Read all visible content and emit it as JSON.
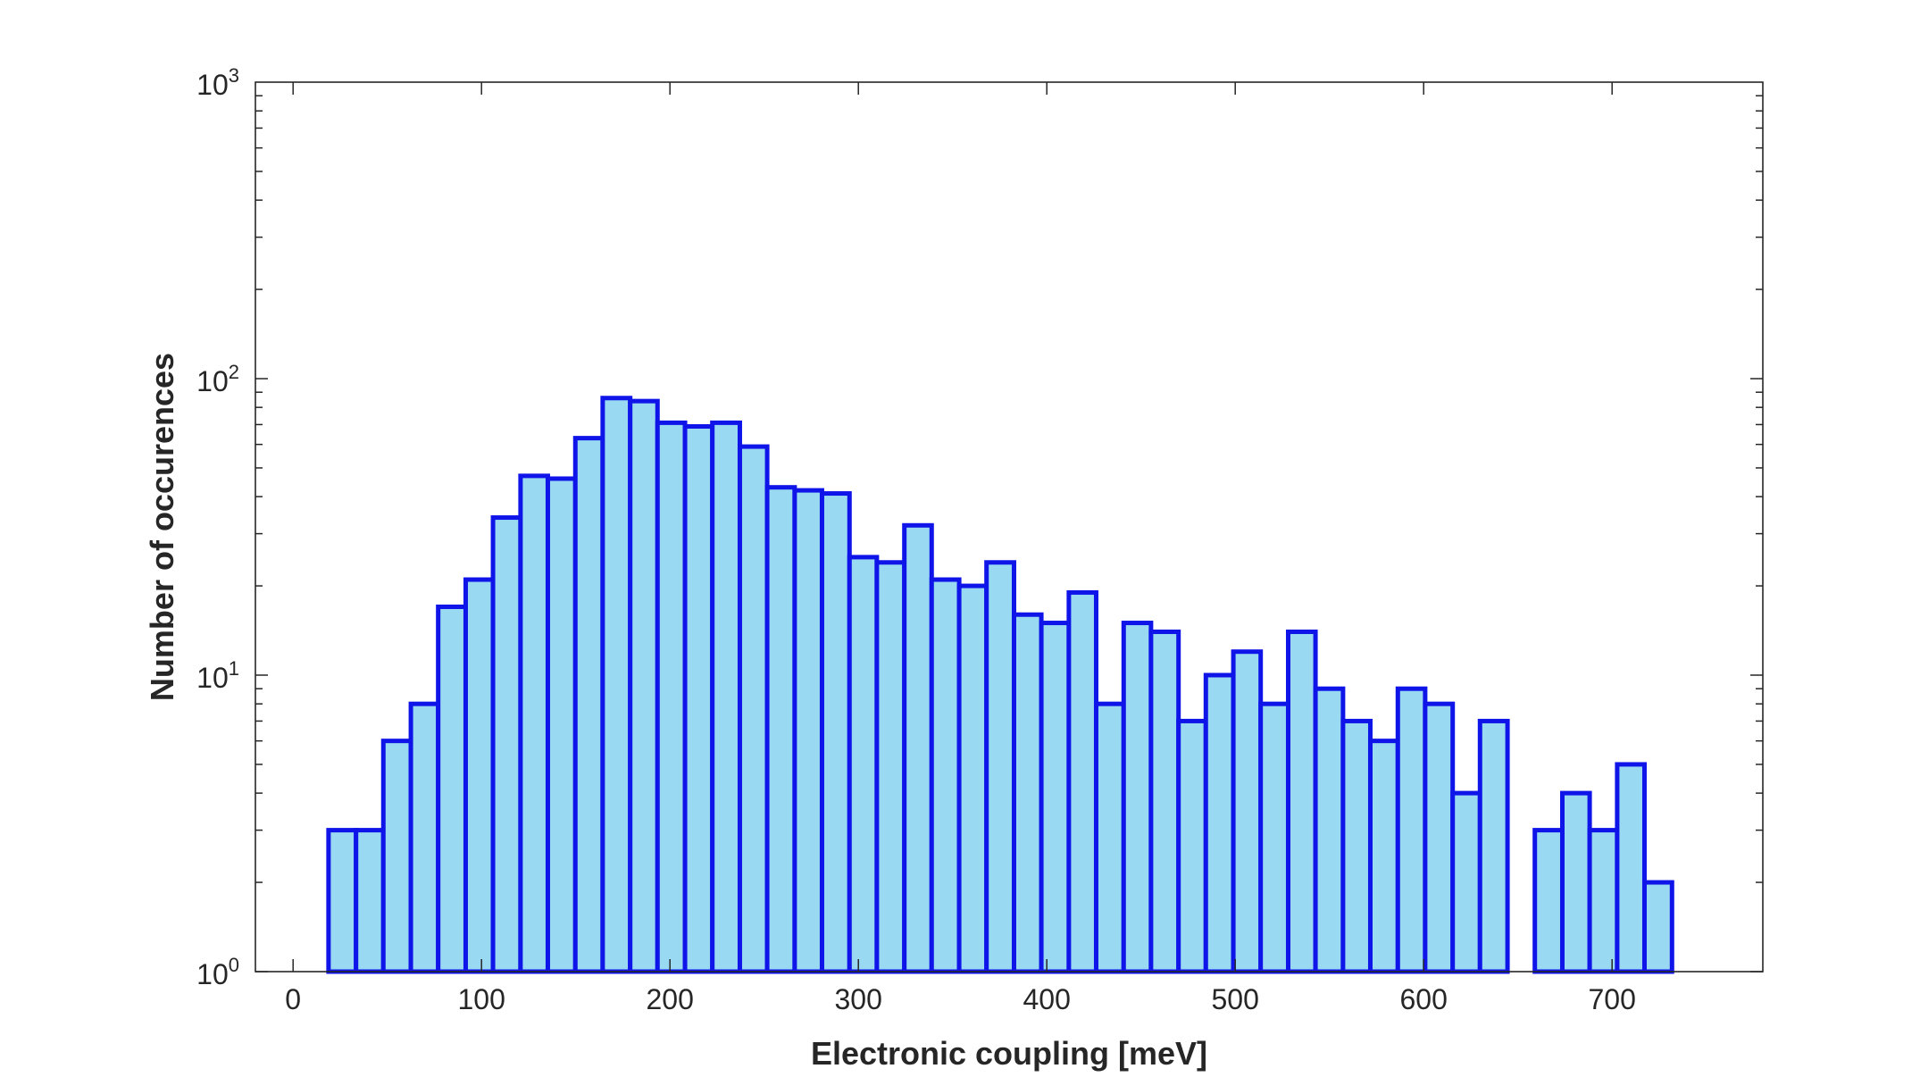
{
  "chart_data": {
    "type": "bar",
    "histogram": true,
    "xlabel": "Electronic coupling [meV]",
    "ylabel": "Number of occurences",
    "title": "",
    "yscale": "log",
    "xlim": [
      -20,
      780
    ],
    "ylim": [
      1,
      1000
    ],
    "xticks": [
      0,
      100,
      200,
      300,
      400,
      500,
      600,
      700
    ],
    "xtick_labels": [
      "0",
      "100",
      "200",
      "300",
      "400",
      "500",
      "600",
      "700"
    ],
    "yticks": [
      1,
      10,
      100,
      1000
    ],
    "ytick_labels": [
      {
        "base": "10",
        "exp": "0"
      },
      {
        "base": "10",
        "exp": "1"
      },
      {
        "base": "10",
        "exp": "2"
      },
      {
        "base": "10",
        "exp": "3"
      }
    ],
    "bin_edges": [
      18.8,
      33.4,
      47.9,
      62.5,
      77.0,
      91.6,
      106.1,
      120.7,
      135.2,
      149.8,
      164.3,
      178.9,
      193.4,
      208.0,
      222.5,
      237.1,
      251.6,
      266.2,
      280.7,
      295.3,
      309.8,
      324.4,
      338.9,
      353.5,
      368.0,
      382.6,
      397.1,
      411.7,
      426.2,
      440.8,
      455.3,
      469.9,
      484.4,
      499.0,
      513.5,
      528.1,
      542.6,
      557.2,
      571.7,
      586.3,
      600.8,
      615.4,
      629.9,
      644.5,
      659.0,
      673.6,
      688.1,
      702.7,
      717.2,
      731.8,
      746.3
    ],
    "counts": [
      3,
      3,
      6,
      8,
      17,
      21,
      34,
      47,
      46,
      63,
      86,
      84,
      71,
      69,
      71,
      59,
      43,
      42,
      41,
      25,
      24,
      32,
      21,
      20,
      24,
      16,
      15,
      19,
      8,
      15,
      14,
      7,
      10,
      12,
      8,
      14,
      9,
      7,
      6,
      9,
      8,
      4,
      7,
      1,
      3,
      4,
      3,
      5,
      2,
      1
    ],
    "bar_fill": "#99d9f2",
    "bar_edge": "#0f15e8",
    "grid": false,
    "legend": "none"
  }
}
